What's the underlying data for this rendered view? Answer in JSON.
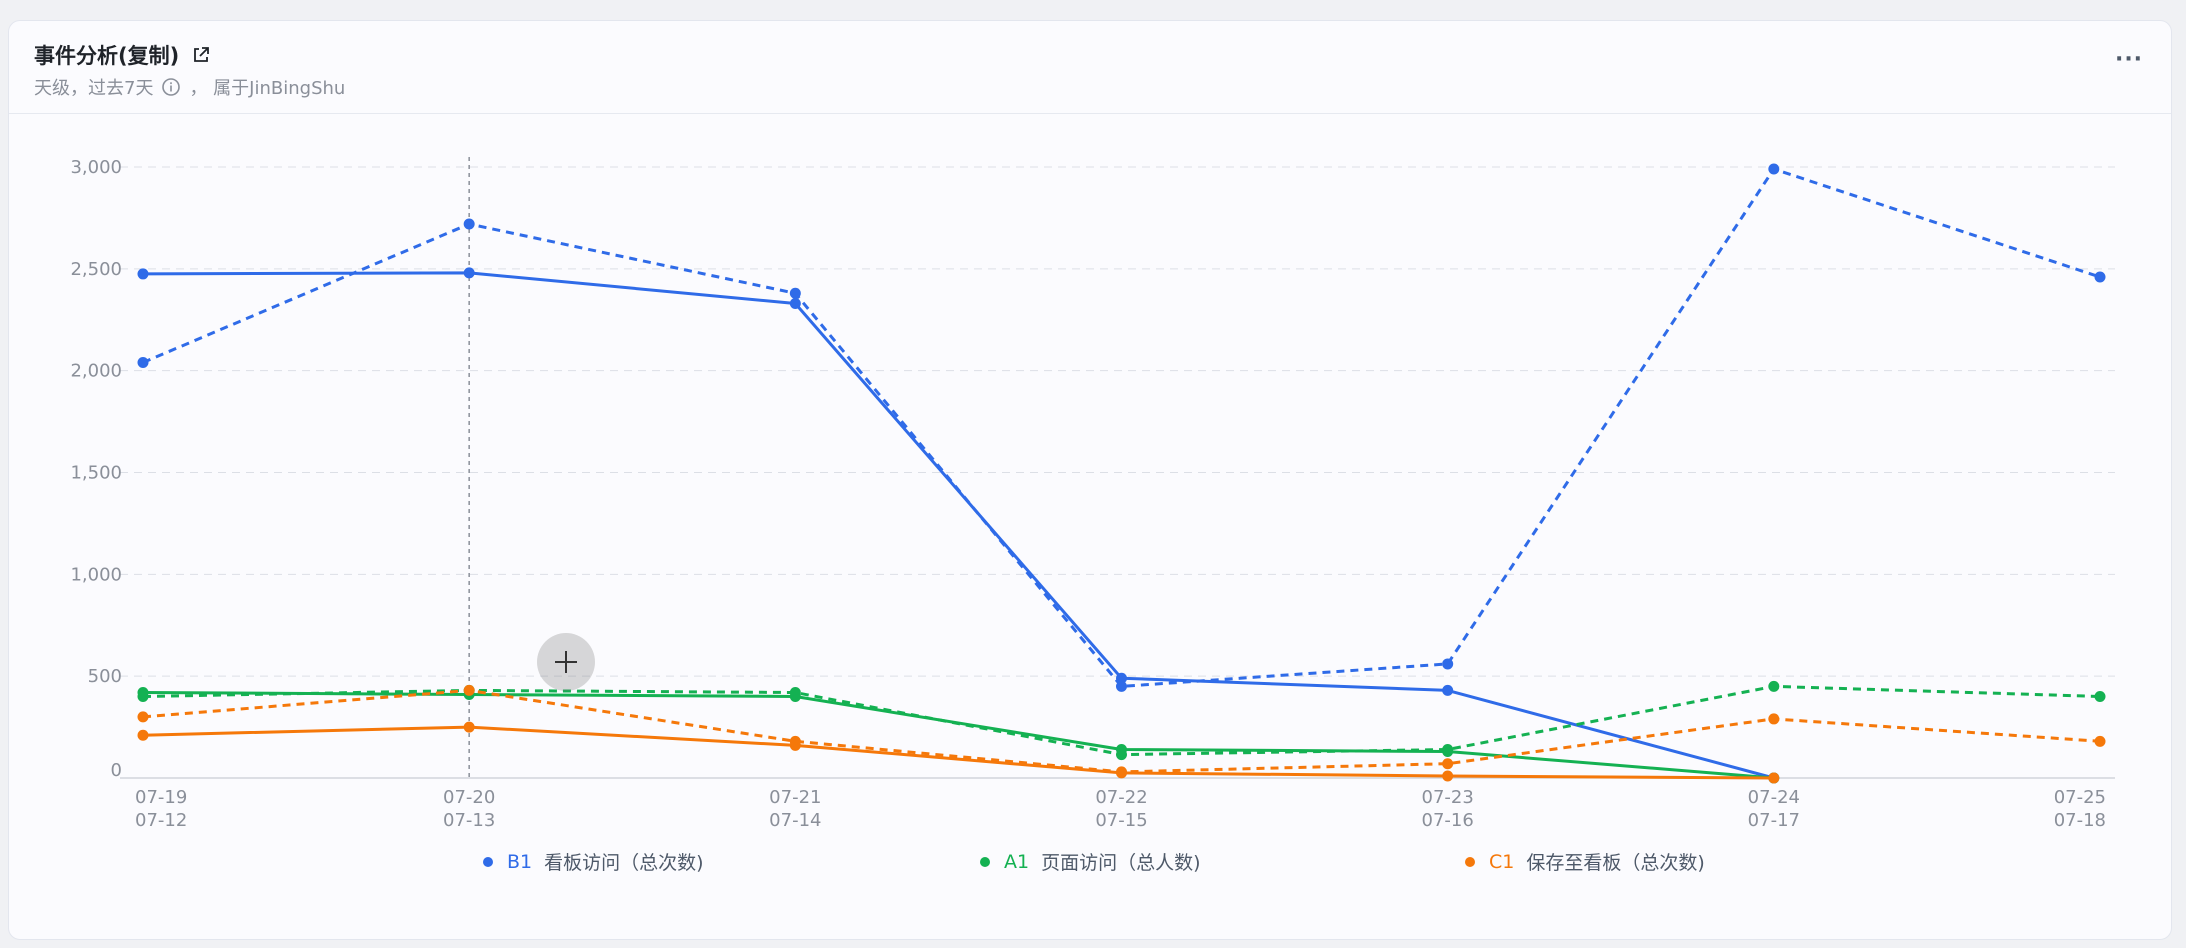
{
  "header": {
    "title": "事件分析(复制)",
    "subtitle_prefix": "天级，过去7天",
    "subtitle_suffix": "，  属于JinBingShu",
    "more_label": "···"
  },
  "colors": {
    "blue": "#2f6be8",
    "green": "#14b152",
    "orange": "#f5780a",
    "grid": "#dcdfe6",
    "axis_text": "#8a8f99"
  },
  "legend": [
    {
      "id": "B1",
      "label": "看板访问（总次数)",
      "color": "#2f6be8"
    },
    {
      "id": "A1",
      "label": "页面访问（总人数)",
      "color": "#14b152"
    },
    {
      "id": "C1",
      "label": "保存至看板（总次数)",
      "color": "#f5780a"
    }
  ],
  "chart_data": {
    "type": "line",
    "x": [
      "07-19",
      "07-20",
      "07-21",
      "07-22",
      "07-23",
      "07-24",
      "07-25"
    ],
    "x_compare": [
      "07-12",
      "07-13",
      "07-14",
      "07-15",
      "07-16",
      "07-17",
      "07-18"
    ],
    "yticks": [
      0,
      500,
      1000,
      1500,
      2000,
      2500,
      3000
    ],
    "ytick_labels": [
      "0",
      "500",
      "1,000",
      "1,500",
      "2,000",
      "2,500",
      "3,000"
    ],
    "ylim": [
      0,
      3000
    ],
    "grid": true,
    "legend_position": "bottom",
    "highlight_x": "07-20",
    "series": [
      {
        "name": "B1 看板访问（总次数)",
        "color": "#2f6be8",
        "style": "solid",
        "values": [
          2475,
          2480,
          2330,
          490,
          430,
          0,
          null
        ]
      },
      {
        "name": "B1 看板访问（总次数)",
        "color": "#2f6be8",
        "style": "dashed",
        "values": [
          2040,
          2720,
          2380,
          450,
          560,
          2990,
          2460
        ]
      },
      {
        "name": "A1 页面访问（总人数)",
        "color": "#14b152",
        "style": "solid",
        "values": [
          420,
          410,
          400,
          140,
          130,
          0,
          null
        ]
      },
      {
        "name": "A1 页面访问（总人数)",
        "color": "#14b152",
        "style": "dashed",
        "values": [
          400,
          430,
          420,
          115,
          140,
          450,
          400
        ]
      },
      {
        "name": "C1 保存至看板（总次数)",
        "color": "#f5780a",
        "style": "solid",
        "values": [
          210,
          250,
          160,
          25,
          10,
          0,
          null
        ]
      },
      {
        "name": "C1 保存至看板（总次数)",
        "color": "#f5780a",
        "style": "dashed",
        "values": [
          300,
          430,
          180,
          30,
          70,
          290,
          180
        ]
      }
    ]
  }
}
